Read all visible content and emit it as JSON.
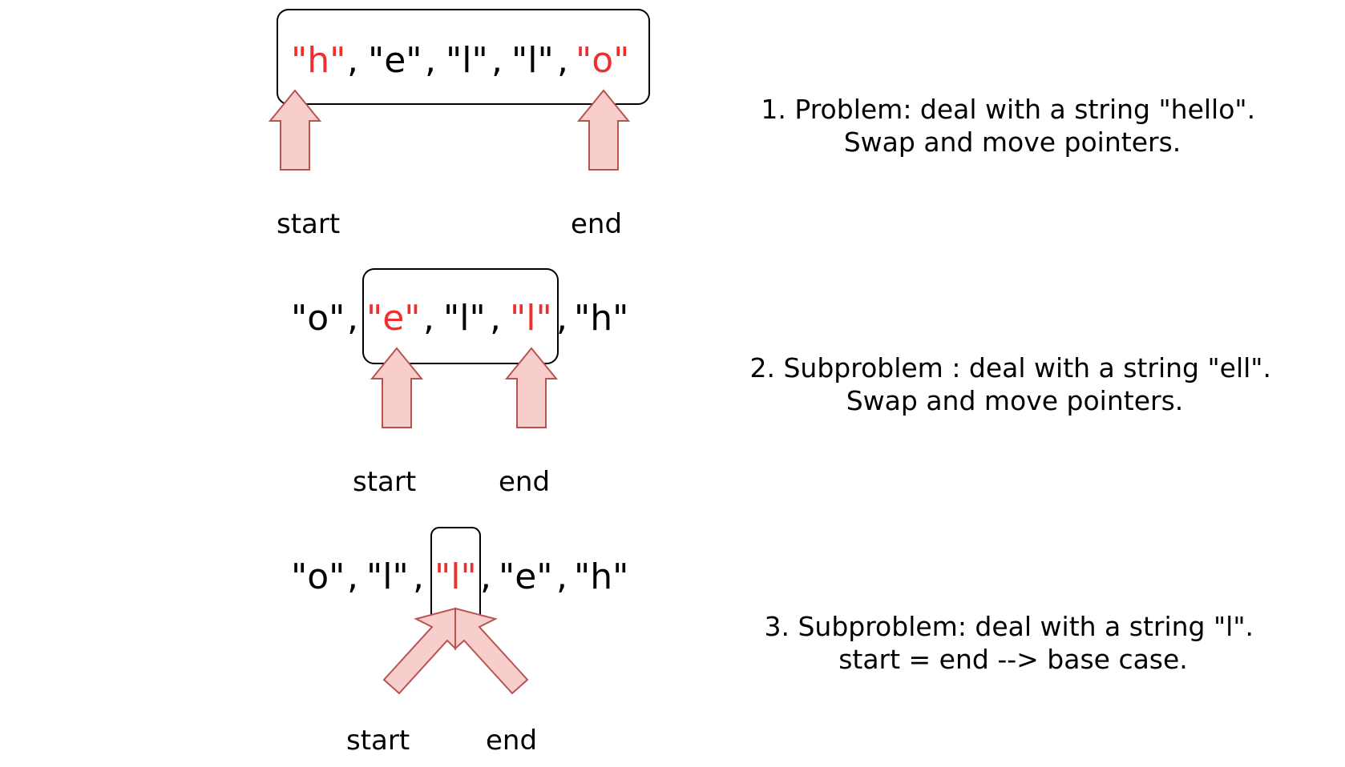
{
  "rows": [
    {
      "tokens": [
        {
          "text": "\"h\"",
          "hl": true
        },
        {
          "text": ", "
        },
        {
          "text": "\"e\""
        },
        {
          "text": ", "
        },
        {
          "text": "\"l\""
        },
        {
          "text": ", "
        },
        {
          "text": "\"l\""
        },
        {
          "text": ", "
        },
        {
          "text": "\"o\"",
          "hl": true
        }
      ],
      "start_label": "start",
      "end_label": "end",
      "caption": [
        "1. Problem: deal with a string \"hello\".",
        "Swap and move pointers."
      ]
    },
    {
      "tokens": [
        {
          "text": "\"o\""
        },
        {
          "text": ", "
        },
        {
          "text": "\"e\"",
          "hl": true
        },
        {
          "text": ", "
        },
        {
          "text": "\"l\""
        },
        {
          "text": ", "
        },
        {
          "text": "\"l\"",
          "hl": true
        },
        {
          "text": ", "
        },
        {
          "text": "\"h\""
        }
      ],
      "start_label": "start",
      "end_label": "end",
      "caption": [
        "2. Subproblem : deal with a string \"ell\".",
        "Swap and move pointers."
      ]
    },
    {
      "tokens": [
        {
          "text": "\"o\""
        },
        {
          "text": ", "
        },
        {
          "text": "\"l\""
        },
        {
          "text": ", "
        },
        {
          "text": "\"l\"",
          "hl": true
        },
        {
          "text": ", "
        },
        {
          "text": "\"e\""
        },
        {
          "text": ", "
        },
        {
          "text": "\"h\""
        }
      ],
      "start_label": "start",
      "end_label": "end",
      "caption": [
        "3. Subproblem: deal with a string \"l\".",
        "start = end --> base case."
      ]
    }
  ],
  "colors": {
    "highlight": "#ef2f2f",
    "arrow_fill": "#f8cecc",
    "arrow_stroke": "#b85450"
  }
}
